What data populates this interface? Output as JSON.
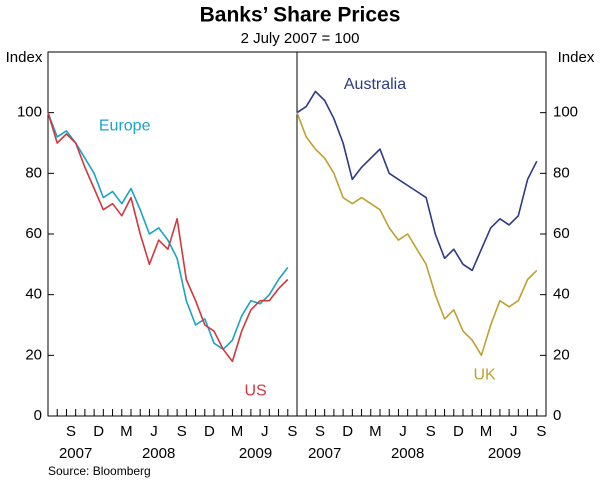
{
  "title": "Banks’ Share Prices",
  "subtitle": "2 July 2007 = 100",
  "source": "Source: Bloomberg",
  "chart_data": [
    {
      "type": "line",
      "ylabel": "Index",
      "ytick_side": "left",
      "x": [
        "2007-07",
        "2007-08",
        "2007-09",
        "2007-10",
        "2007-11",
        "2007-12",
        "2008-01",
        "2008-02",
        "2008-03",
        "2008-04",
        "2008-05",
        "2008-06",
        "2008-07",
        "2008-08",
        "2008-09",
        "2008-10",
        "2008-11",
        "2008-12",
        "2009-01",
        "2009-02",
        "2009-03",
        "2009-04",
        "2009-05",
        "2009-06",
        "2009-07",
        "2009-08",
        "2009-09"
      ],
      "xticks": [
        {
          "value": "2007-09",
          "label": "S"
        },
        {
          "value": "2007-12",
          "label": "D"
        },
        {
          "value": "2008-03",
          "label": "M"
        },
        {
          "value": "2008-06",
          "label": "J"
        },
        {
          "value": "2008-09",
          "label": "S"
        },
        {
          "value": "2008-12",
          "label": "D"
        },
        {
          "value": "2009-03",
          "label": "M"
        },
        {
          "value": "2009-06",
          "label": "J"
        },
        {
          "value": "2009-09",
          "label": "S"
        }
      ],
      "years": [
        "2007",
        "2008",
        "2009"
      ],
      "ylim": [
        0,
        120
      ],
      "yticks": [
        0,
        20,
        40,
        60,
        80,
        100
      ],
      "series": [
        {
          "name": "Europe",
          "color": "#1ba3c6",
          "values": [
            100,
            92,
            94,
            90,
            85,
            80,
            72,
            74,
            70,
            75,
            68,
            60,
            62,
            58,
            52,
            38,
            30,
            32,
            24,
            22,
            25,
            33,
            38,
            37,
            40,
            45,
            49
          ]
        },
        {
          "name": "US",
          "color": "#d2373c",
          "values": [
            100,
            90,
            93,
            90,
            82,
            75,
            68,
            70,
            66,
            72,
            60,
            50,
            58,
            55,
            65,
            45,
            38,
            30,
            28,
            22,
            18,
            28,
            35,
            38,
            38,
            42,
            45
          ]
        }
      ]
    },
    {
      "type": "line",
      "ylabel": "Index",
      "ytick_side": "right",
      "x": [
        "2007-07",
        "2007-08",
        "2007-09",
        "2007-10",
        "2007-11",
        "2007-12",
        "2008-01",
        "2008-02",
        "2008-03",
        "2008-04",
        "2008-05",
        "2008-06",
        "2008-07",
        "2008-08",
        "2008-09",
        "2008-10",
        "2008-11",
        "2008-12",
        "2009-01",
        "2009-02",
        "2009-03",
        "2009-04",
        "2009-05",
        "2009-06",
        "2009-07",
        "2009-08",
        "2009-09"
      ],
      "xticks": [
        {
          "value": "2007-09",
          "label": "S"
        },
        {
          "value": "2007-12",
          "label": "D"
        },
        {
          "value": "2008-03",
          "label": "M"
        },
        {
          "value": "2008-06",
          "label": "J"
        },
        {
          "value": "2008-09",
          "label": "S"
        },
        {
          "value": "2008-12",
          "label": "D"
        },
        {
          "value": "2009-03",
          "label": "M"
        },
        {
          "value": "2009-06",
          "label": "J"
        },
        {
          "value": "2009-09",
          "label": "S"
        }
      ],
      "years": [
        "2007",
        "2008",
        "2009"
      ],
      "ylim": [
        0,
        120
      ],
      "yticks": [
        0,
        20,
        40,
        60,
        80,
        100
      ],
      "series": [
        {
          "name": "Australia",
          "color": "#2e3a87",
          "values": [
            100,
            102,
            107,
            104,
            98,
            90,
            78,
            82,
            85,
            88,
            80,
            78,
            76,
            74,
            72,
            60,
            52,
            55,
            50,
            48,
            55,
            62,
            65,
            63,
            66,
            78,
            84
          ]
        },
        {
          "name": "UK",
          "color": "#c0a030",
          "values": [
            100,
            92,
            88,
            85,
            80,
            72,
            70,
            72,
            70,
            68,
            62,
            58,
            60,
            55,
            50,
            40,
            32,
            35,
            28,
            25,
            20,
            30,
            38,
            36,
            38,
            45,
            48
          ]
        }
      ]
    }
  ]
}
